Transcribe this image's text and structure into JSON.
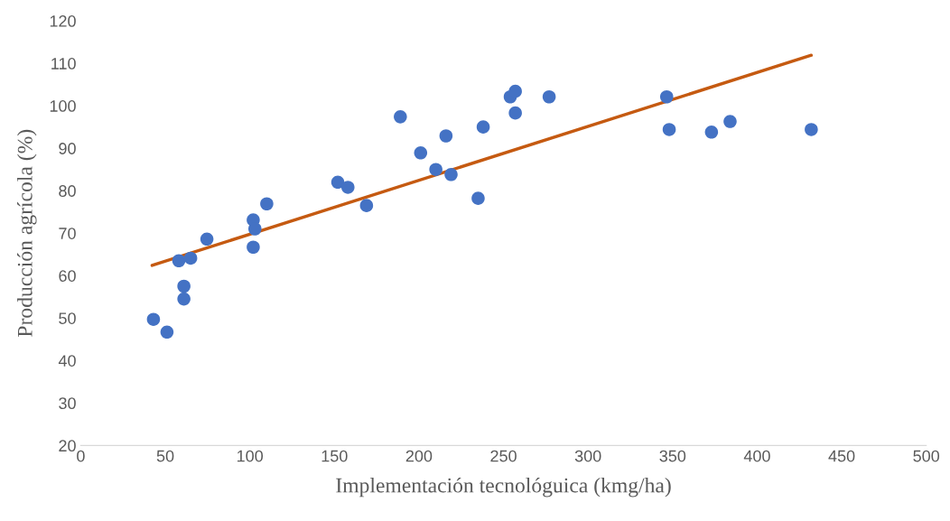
{
  "chart_data": {
    "type": "scatter",
    "xlabel": "Implementación tecnológuica (kmg/ha)",
    "ylabel": "Producción agrícola (%)",
    "xlim": [
      0,
      500
    ],
    "xticks": [
      0,
      50,
      100,
      150,
      200,
      250,
      300,
      350,
      400,
      450,
      500
    ],
    "ylim": [
      20,
      120
    ],
    "yticks": [
      20,
      30,
      40,
      50,
      60,
      70,
      80,
      90,
      100,
      110,
      120
    ],
    "grid": false,
    "legend": false,
    "marker": "circle",
    "series": [
      {
        "color": "#4472c4",
        "x": [
          43,
          51,
          58,
          61,
          61,
          65,
          74.6,
          102,
          103,
          102,
          110,
          152,
          158,
          169,
          189,
          201,
          210,
          216,
          219,
          235,
          238,
          254,
          257,
          257,
          277,
          346.5,
          348,
          373,
          384,
          432
        ],
        "values": [
          49.7,
          46.7,
          63.5,
          57.5,
          54.5,
          64.1,
          68.6,
          73.1,
          71,
          66.7,
          76.9,
          82,
          80.8,
          76.5,
          97.4,
          88.9,
          85,
          92.9,
          83.8,
          78.2,
          95,
          102.1,
          103.4,
          98.3,
          102.1,
          102.1,
          94.4,
          93.8,
          96.3,
          94.4
        ]
      },
      {
        "type": "line",
        "marker": "none",
        "color": "#c55a11",
        "x": [
          42.2,
          432
        ],
        "values": [
          62.4,
          111.9
        ]
      }
    ]
  }
}
